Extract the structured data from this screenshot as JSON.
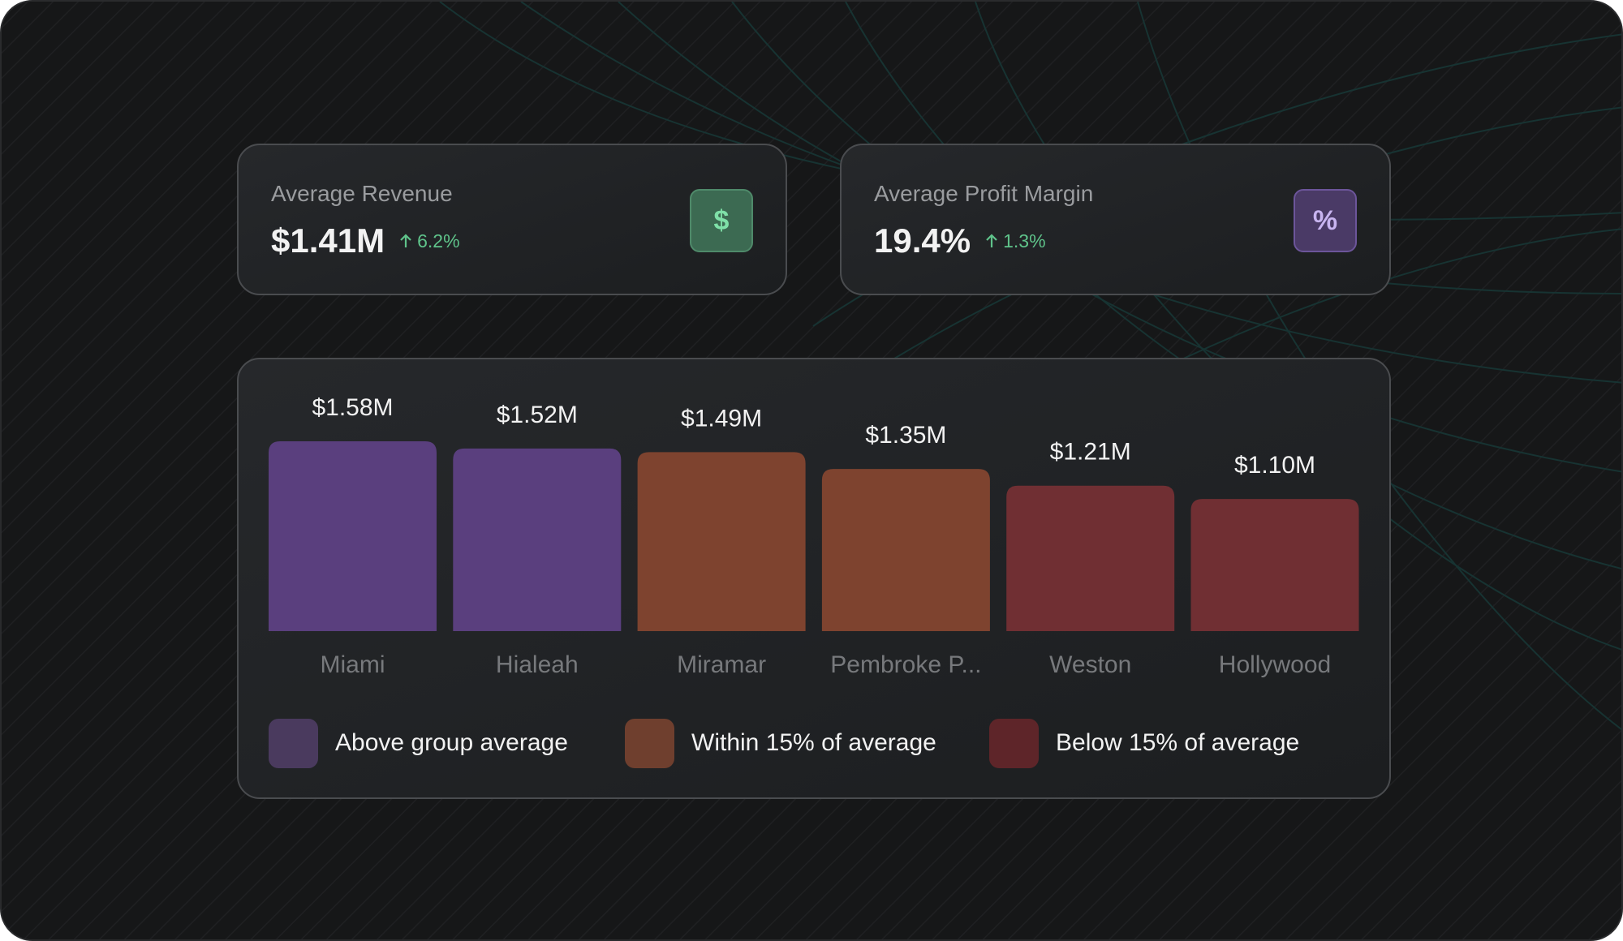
{
  "kpis": [
    {
      "label": "Average Revenue",
      "value": "$1.41M",
      "change": "6.2%",
      "icon": "$",
      "icon_bg": "#3c6a52",
      "icon_border": "#4f8a6a",
      "icon_color": "#7fe0a8"
    },
    {
      "label": "Average Profit Margin",
      "value": "19.4%",
      "change": "1.3%",
      "icon": "%",
      "icon_bg": "#4a3a66",
      "icon_border": "#6c559a",
      "icon_color": "#c8b4f0"
    }
  ],
  "chart_data": {
    "type": "bar",
    "categories": [
      "Miami",
      "Hialeah",
      "Miramar",
      "Pembroke P...",
      "Weston",
      "Hollywood"
    ],
    "values": [
      1.58,
      1.52,
      1.49,
      1.35,
      1.21,
      1.1
    ],
    "value_labels": [
      "$1.58M",
      "$1.52M",
      "$1.49M",
      "$1.35M",
      "$1.21M",
      "$1.10M"
    ],
    "colors": [
      "#5a3f7e",
      "#5a3f7e",
      "#7e432f",
      "#7e432f",
      "#702f33",
      "#702f33"
    ],
    "legend": [
      {
        "label": "Above group average",
        "color": "#4a3a5e"
      },
      {
        "label": "Within 15% of average",
        "color": "#6f3f2e"
      },
      {
        "label": "Below 15% of average",
        "color": "#5e2529"
      }
    ]
  }
}
